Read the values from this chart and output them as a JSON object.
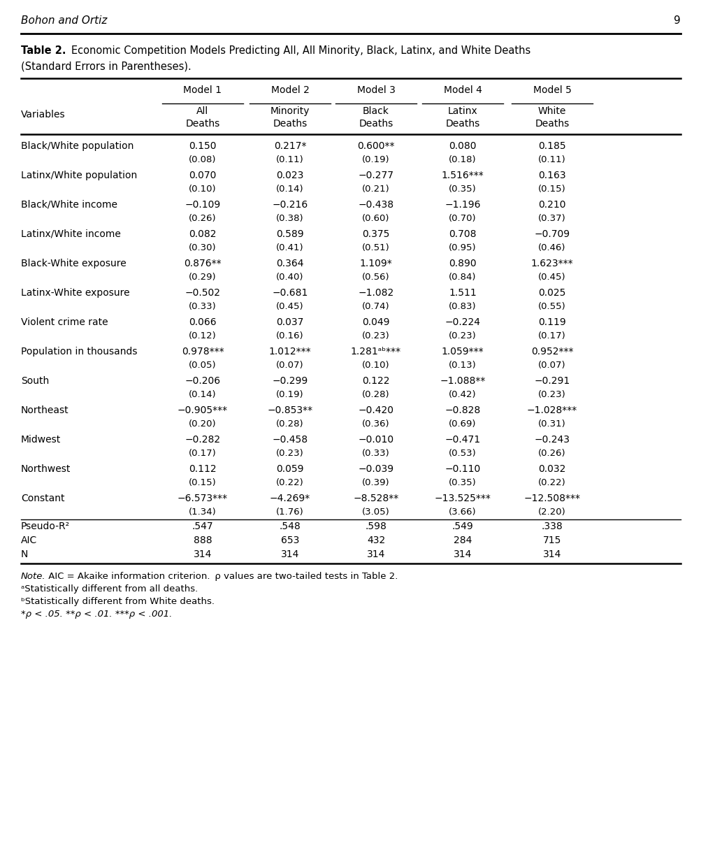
{
  "header_author": "Bohon and Ortiz",
  "header_page": "9",
  "title_bold": "Table 2.",
  "title_normal": "Economic Competition Models Predicting All, All Minority, Black, Latinx, and White Deaths",
  "title_line2": "(Standard Errors in Parentheses).",
  "col_headers": [
    "Model 1",
    "Model 2",
    "Model 3",
    "Model 4",
    "Model 5"
  ],
  "col_subheaders_line1": [
    "All",
    "Minority",
    "Black",
    "Latinx",
    "White"
  ],
  "col_subheaders_line2": [
    "Deaths",
    "Deaths",
    "Deaths",
    "Deaths",
    "Deaths"
  ],
  "rows": [
    [
      "Black/White population",
      "0.150",
      "0.217*",
      "0.600**",
      "0.080",
      "0.185"
    ],
    [
      "",
      "(0.08)",
      "(0.11)",
      "(0.19)",
      "(0.18)",
      "(0.11)"
    ],
    [
      "Latinx/White population",
      "0.070",
      "0.023",
      "−0.277",
      "1.516***",
      "0.163"
    ],
    [
      "",
      "(0.10)",
      "(0.14)",
      "(0.21)",
      "(0.35)",
      "(0.15)"
    ],
    [
      "Black/White income",
      "−0.109",
      "−0.216",
      "−0.438",
      "−1.196",
      "0.210"
    ],
    [
      "",
      "(0.26)",
      "(0.38)",
      "(0.60)",
      "(0.70)",
      "(0.37)"
    ],
    [
      "Latinx/White income",
      "0.082",
      "0.589",
      "0.375",
      "0.708",
      "−0.709"
    ],
    [
      "",
      "(0.30)",
      "(0.41)",
      "(0.51)",
      "(0.95)",
      "(0.46)"
    ],
    [
      "Black-White exposure",
      "0.876**",
      "0.364",
      "1.109*",
      "0.890",
      "1.623***"
    ],
    [
      "",
      "(0.29)",
      "(0.40)",
      "(0.56)",
      "(0.84)",
      "(0.45)"
    ],
    [
      "Latinx-White exposure",
      "−0.502",
      "−0.681",
      "−1.082",
      "1.511",
      "0.025"
    ],
    [
      "",
      "(0.33)",
      "(0.45)",
      "(0.74)",
      "(0.83)",
      "(0.55)"
    ],
    [
      "Violent crime rate",
      "0.066",
      "0.037",
      "0.049",
      "−0.224",
      "0.119"
    ],
    [
      "",
      "(0.12)",
      "(0.16)",
      "(0.23)",
      "(0.23)",
      "(0.17)"
    ],
    [
      "Population in thousands",
      "0.978***",
      "1.012***",
      "1.281ᵃᵇ***",
      "1.059***",
      "0.952***"
    ],
    [
      "",
      "(0.05)",
      "(0.07)",
      "(0.10)",
      "(0.13)",
      "(0.07)"
    ],
    [
      "South",
      "−0.206",
      "−0.299",
      "0.122",
      "−1.088**",
      "−0.291"
    ],
    [
      "",
      "(0.14)",
      "(0.19)",
      "(0.28)",
      "(0.42)",
      "(0.23)"
    ],
    [
      "Northeast",
      "−0.905***",
      "−0.853**",
      "−0.420",
      "−0.828",
      "−1.028***"
    ],
    [
      "",
      "(0.20)",
      "(0.28)",
      "(0.36)",
      "(0.69)",
      "(0.31)"
    ],
    [
      "Midwest",
      "−0.282",
      "−0.458",
      "−0.010",
      "−0.471",
      "−0.243"
    ],
    [
      "",
      "(0.17)",
      "(0.23)",
      "(0.33)",
      "(0.53)",
      "(0.26)"
    ],
    [
      "Northwest",
      "0.112",
      "0.059",
      "−0.039",
      "−0.110",
      "0.032"
    ],
    [
      "",
      "(0.15)",
      "(0.22)",
      "(0.39)",
      "(0.35)",
      "(0.22)"
    ],
    [
      "Constant",
      "−6.573***",
      "−4.269*",
      "−8.528**",
      "−13.525***",
      "−12.508***"
    ],
    [
      "",
      "(1.34)",
      "(1.76)",
      "(3.05)",
      "(3.66)",
      "(2.20)"
    ],
    [
      "Pseudo-R²",
      ".547",
      ".548",
      ".598",
      ".549",
      ".338"
    ],
    [
      "AIC",
      "888",
      "653",
      "432",
      "284",
      "715"
    ],
    [
      "N",
      "314",
      "314",
      "314",
      "314",
      "314"
    ]
  ],
  "footer_note_italic": "Note.",
  "footer_note_rest": " AIC = Akaike information criterion.  ρ values are two-tailed tests in Table 2.",
  "footer_lines": [
    "ᵃStatistically different from all deaths.",
    "ᵇStatistically different from White deaths.",
    "*ρ < .05. **ρ < .01. ***ρ < .001."
  ],
  "bg_color": "#ffffff"
}
